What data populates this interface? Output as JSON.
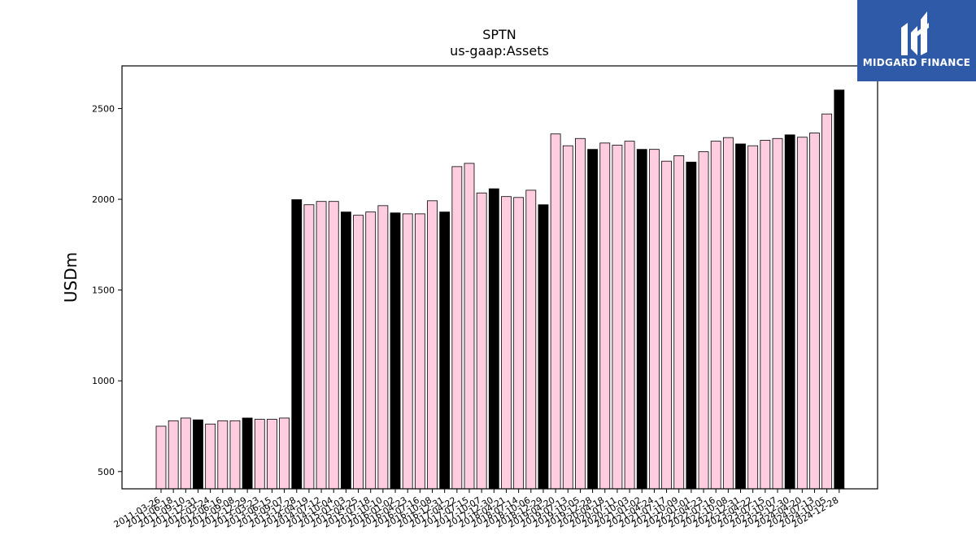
{
  "logo": {
    "text": "MIDGARD FINANCE",
    "color": "#2e5aa8"
  },
  "chart_data": {
    "type": "bar",
    "title": "SPTN",
    "subtitle": "us-gaap:Assets",
    "ylabel": "USDm",
    "xlabel": "",
    "ylim": [
      405,
      2735
    ],
    "yticks": [
      500,
      1000,
      1500,
      2000,
      2500
    ],
    "grid": false,
    "colors": {
      "quarter": "#ffcce0",
      "year_end": "#000000",
      "edge": "#000000"
    },
    "categories": [
      "2011-03-26",
      "2011-06-18",
      "2011-09-10",
      "2011-12-31",
      "2012-03-24",
      "2012-06-16",
      "2012-09-08",
      "2012-12-29",
      "2013-03-23",
      "2013-06-15",
      "2013-09-07",
      "2013-12-28",
      "2014-04-19",
      "2014-07-12",
      "2014-10-04",
      "2015-01-03",
      "2015-04-25",
      "2015-07-18",
      "2015-10-10",
      "2016-01-02",
      "2016-04-23",
      "2016-07-16",
      "2016-10-08",
      "2016-12-31",
      "2017-04-22",
      "2017-07-15",
      "2017-10-07",
      "2017-12-30",
      "2018-04-21",
      "2018-07-14",
      "2018-10-06",
      "2018-12-29",
      "2019-04-20",
      "2019-07-13",
      "2019-10-05",
      "2019-12-28",
      "2020-04-18",
      "2020-07-11",
      "2020-10-03",
      "2021-01-02",
      "2021-04-24",
      "2021-07-17",
      "2021-10-09",
      "2022-01-01",
      "2022-04-23",
      "2022-07-16",
      "2022-10-08",
      "2022-12-31",
      "2023-04-22",
      "2023-07-15",
      "2023-10-07",
      "2023-12-30",
      "2024-04-20",
      "2024-07-13",
      "2024-10-05",
      "2024-12-28"
    ],
    "labels_shown": [
      "2011-03-26",
      "2011-06-18",
      "2011-09-10",
      "2011-12-31",
      "2012-03-24",
      "2012-06-16",
      "2012-09-08",
      "2012-12-29",
      "2013-03-23",
      "2013-06-15",
      "2013-09-07",
      "2013-12-28",
      "2014-04-19",
      "2014-07-12",
      "2014-10-04",
      "2015-01-03",
      "2015-04-25",
      "2015-07-18",
      "2015-10-10",
      "2016-01-02",
      "2016-04-23",
      "2016-07-16",
      "2016-10-08",
      "2016-12-31",
      "2017-04-22",
      "2017-07-15",
      "2017-10-07",
      "2017-12-30",
      "2018-04-21",
      "2018-07-14",
      "2018-10-06",
      "2018-12-29",
      "2019-04-20",
      "2019-07-13",
      "2019-10-05",
      "2019-12-28",
      "2020-04-18",
      "2020-07-11",
      "2020-10-03",
      "2021-01-02",
      "2021-04-24",
      "2021-07-17",
      "2021-10-09",
      "2022-01-01",
      "2022-04-23",
      "2022-07-16",
      "2022-10-08",
      "2022-12-31",
      "2023-04-22",
      "2023-07-15",
      "2023-10-07",
      "2023-12-30",
      "2024-04-20",
      "2024-07-13",
      "2024-10-05",
      "2024-12-28"
    ],
    "values": [
      750,
      780,
      795,
      785,
      762,
      780,
      780,
      795,
      788,
      788,
      795,
      1998,
      1970,
      1988,
      1988,
      1930,
      1912,
      1930,
      1965,
      1925,
      1920,
      1920,
      1992,
      1930,
      2180,
      2198,
      2035,
      2058,
      2015,
      2010,
      2050,
      1970,
      2360,
      2295,
      2335,
      2275,
      2310,
      2298,
      2320,
      2275,
      2275,
      2210,
      2240,
      2205,
      2262,
      2320,
      2340,
      2305,
      2295,
      2325,
      2335,
      2355,
      2342,
      2365,
      2470,
      2602
    ],
    "year_end": [
      false,
      false,
      false,
      true,
      false,
      false,
      false,
      true,
      false,
      false,
      false,
      true,
      false,
      false,
      false,
      true,
      false,
      false,
      false,
      true,
      false,
      false,
      false,
      true,
      false,
      false,
      false,
      true,
      false,
      false,
      false,
      true,
      false,
      false,
      false,
      true,
      false,
      false,
      false,
      true,
      false,
      false,
      false,
      true,
      false,
      false,
      false,
      true,
      false,
      false,
      false,
      true,
      false,
      false,
      false,
      true
    ]
  }
}
